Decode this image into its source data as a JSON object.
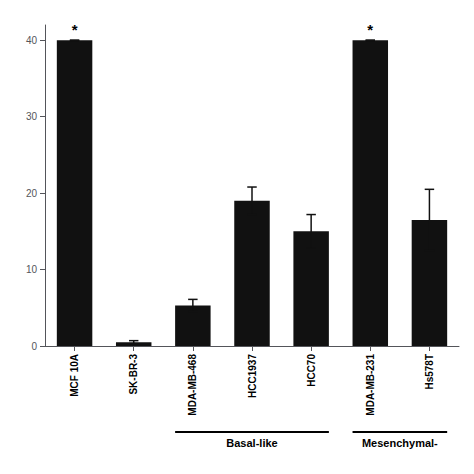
{
  "chart_data": {
    "type": "bar",
    "categories": [
      "MCF 10A",
      "SK-BR-3",
      "MDA-MB-468",
      "HCC1937",
      "HCC70",
      "MDA-MB-231",
      "Hs578T"
    ],
    "values": [
      40.0,
      0.5,
      5.3,
      19.0,
      15.0,
      40.0,
      16.5
    ],
    "errors": [
      0.0,
      0.2,
      0.8,
      1.8,
      2.2,
      0.0,
      4.0
    ],
    "color": "#111111",
    "ylim": [
      0,
      42
    ],
    "yticks": [
      0,
      10,
      20,
      30,
      40
    ],
    "grid": false,
    "annotations": [
      {
        "text": "*",
        "category": "MCF 10A"
      },
      {
        "text": "*",
        "category": "MDA-MB-231"
      }
    ],
    "groups": [
      {
        "label": "Basal-like",
        "start": "MDA-MB-468",
        "end": "HCC70"
      },
      {
        "label": "Mesenchymal-",
        "start": "MDA-MB-231",
        "end": "Hs578T"
      }
    ]
  }
}
